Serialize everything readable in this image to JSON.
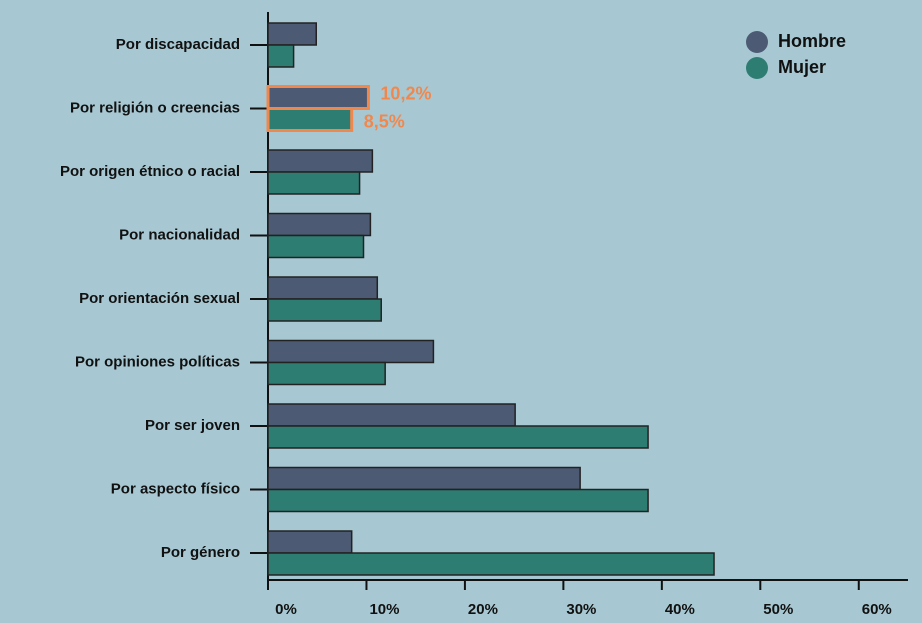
{
  "chart_data": {
    "type": "bar",
    "orientation": "horizontal",
    "categories": [
      "Por discapacidad",
      "Por religión o creencias",
      "Por origen étnico o racial",
      "Por nacionalidad",
      "Por orientación sexual",
      "Por opiniones políticas",
      "Por ser joven",
      "Por aspecto físico",
      "Por género"
    ],
    "series": [
      {
        "name": "Hombre",
        "color": "#4d5a73",
        "values": [
          4.9,
          10.2,
          10.6,
          10.4,
          11.1,
          16.8,
          25.1,
          31.7,
          8.5
        ],
        "value_labels": [
          null,
          "10,2%",
          null,
          null,
          null,
          null,
          null,
          null,
          null
        ]
      },
      {
        "name": "Mujer",
        "color": "#2e7d72",
        "values": [
          2.6,
          8.5,
          9.3,
          9.7,
          11.5,
          11.9,
          38.6,
          38.6,
          45.3
        ],
        "value_labels": [
          null,
          "8,5%",
          null,
          null,
          null,
          null,
          null,
          null,
          null
        ]
      }
    ],
    "label_color": "#f0884e",
    "xlim": [
      0,
      65
    ],
    "xticks": [
      {
        "value": 0,
        "label": "0%"
      },
      {
        "value": 10,
        "label": "10%"
      },
      {
        "value": 20,
        "label": "20%"
      },
      {
        "value": 30,
        "label": "30%"
      },
      {
        "value": 40,
        "label": "40%"
      },
      {
        "value": 50,
        "label": "50%"
      },
      {
        "value": 60,
        "label": "60%"
      }
    ],
    "legend": "top-right"
  }
}
